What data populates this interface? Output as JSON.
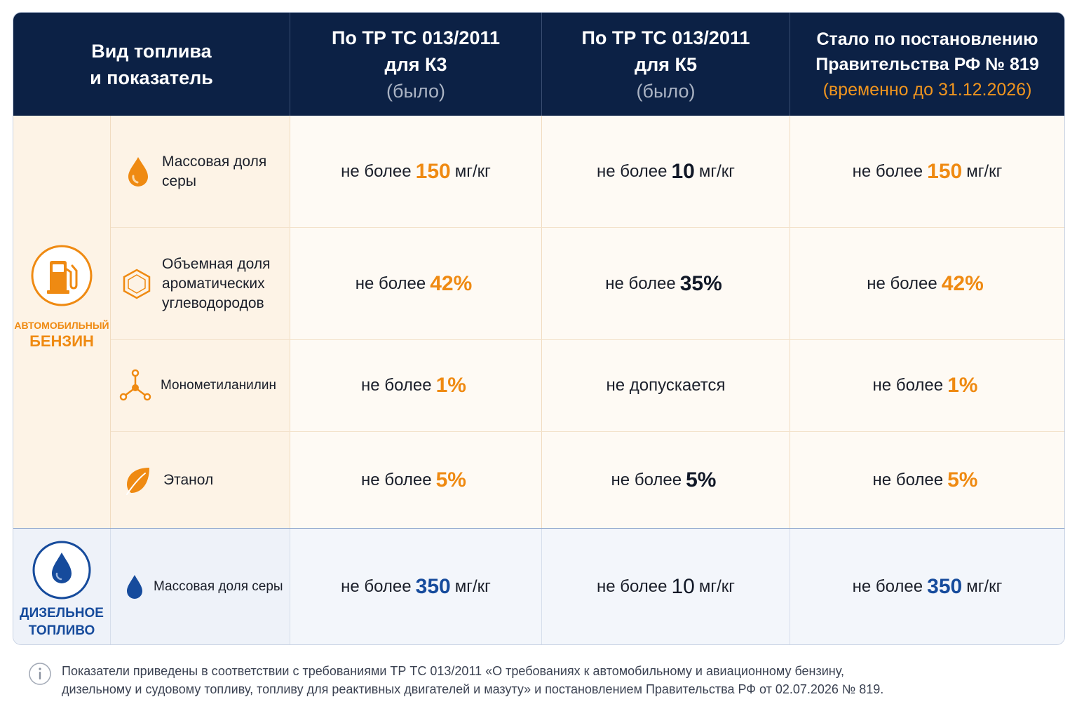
{
  "header": {
    "col1_line1": "Вид топлива",
    "col1_line2": "и показатель",
    "col2_line1": "По ТР ТС 013/2011",
    "col2_line2": "для К3",
    "col2_sub": "(было)",
    "col3_line1": "По ТР ТС 013/2011",
    "col3_line2": "для К5",
    "col3_sub": "(было)",
    "col4_line1": "Стало по постановлению",
    "col4_line2": "Правительства РФ № 819",
    "col4_sub": "(временно до 31.12.2026)"
  },
  "gasoline": {
    "label_top": "АВТОМОБИЛЬНЫЙ",
    "label_bottom": "БЕНЗИН",
    "icon": "fuel-pump-icon",
    "rows": [
      {
        "param": "Массовая доля серы",
        "icon": "droplet-icon",
        "k3": {
          "pre": "не более",
          "num": "150",
          "unit": "мг/кг"
        },
        "k5": {
          "pre": "не более",
          "num": "10",
          "unit": "мг/кг"
        },
        "new": {
          "pre": "не более",
          "num": "150",
          "unit": "мг/кг"
        }
      },
      {
        "param": "Объемная доля ароматических углеводородов",
        "icon": "benzene-ring-icon",
        "k3": {
          "pre": "не более",
          "num": "42%",
          "unit": ""
        },
        "k5": {
          "pre": "не более",
          "num": "35%",
          "unit": ""
        },
        "new": {
          "pre": "не более",
          "num": "42%",
          "unit": ""
        }
      },
      {
        "param": "Монометиланилин",
        "icon": "molecule-icon",
        "k3": {
          "pre": "не более",
          "num": "1%",
          "unit": ""
        },
        "k5": {
          "text": "не допускается"
        },
        "new": {
          "pre": "не более",
          "num": "1%",
          "unit": ""
        }
      },
      {
        "param": "Этанол",
        "icon": "leaf-icon",
        "k3": {
          "pre": "не более",
          "num": "5%",
          "unit": ""
        },
        "k5": {
          "pre": "не более",
          "num": "5%",
          "unit": ""
        },
        "new": {
          "pre": "не более",
          "num": "5%",
          "unit": ""
        }
      }
    ]
  },
  "diesel": {
    "label_top": "ДИЗЕЛЬНОЕ",
    "label_bottom": "ТОПЛИВО",
    "icon": "droplet-circle-icon",
    "row": {
      "param": "Массовая доля серы",
      "icon": "droplet-icon",
      "k3": {
        "pre": "не более",
        "num": "350",
        "unit": "мг/кг"
      },
      "k5": {
        "pre": "не более",
        "num": "10",
        "unit": "мг/кг"
      },
      "new": {
        "pre": "не более",
        "num": "350",
        "unit": "мг/кг"
      }
    }
  },
  "footnote": {
    "line1": "Показатели приведены в соответствии с требованиями ТР ТС 013/2011 «О требованиях к автомобильному и авиационному бензину,",
    "line2": "дизельному и судовому топливу, топливу для реактивных двигателей и мазуту» и постановлением Правительства РФ от 02.07.2026 № 819.",
    "icon": "info-icon"
  },
  "colors": {
    "navy": "#0c2145",
    "orange": "#ef8a12",
    "blue": "#164b9c"
  }
}
